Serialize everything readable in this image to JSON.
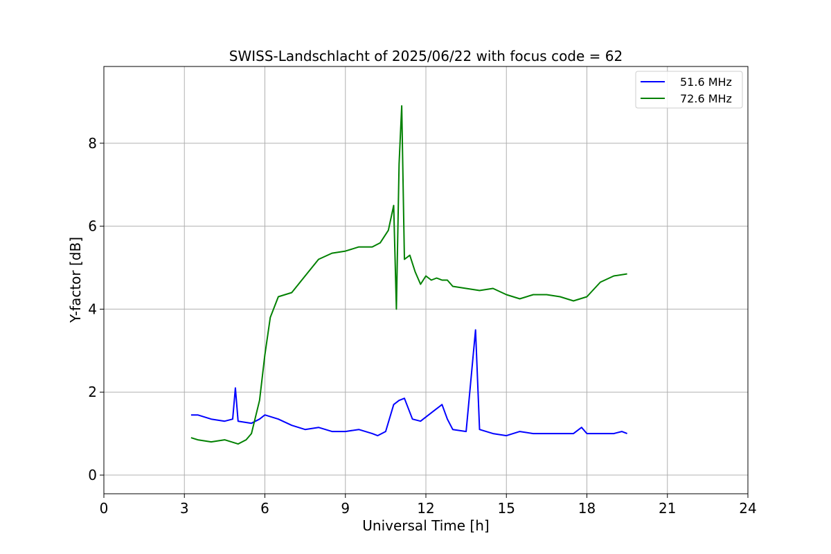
{
  "chart_data": {
    "type": "line",
    "title": "SWISS-Landschlacht of 2025/06/22 with focus code = 62",
    "xlabel": "Universal Time [h]",
    "ylabel": "Y-factor [dB]",
    "xlim": [
      0,
      24
    ],
    "ylim": [
      -0.45,
      9.85
    ],
    "xticks": [
      0,
      3,
      6,
      9,
      12,
      15,
      18,
      21,
      24
    ],
    "xtick_labels": [
      "0",
      "3",
      "6",
      "9",
      "12",
      "15",
      "18",
      "21",
      "24"
    ],
    "yticks": [
      0,
      2,
      4,
      6,
      8
    ],
    "ytick_labels": [
      "0",
      "2",
      "4",
      "6",
      "8"
    ],
    "grid": true,
    "legend_position": "upper-right",
    "series": [
      {
        "name": "51.6 MHz",
        "color": "#0000ff",
        "x": [
          3.25,
          3.5,
          4.0,
          4.5,
          4.8,
          4.9,
          5.0,
          5.5,
          5.8,
          6.0,
          6.5,
          7.0,
          7.5,
          8.0,
          8.5,
          9.0,
          9.5,
          10.0,
          10.2,
          10.5,
          10.8,
          11.0,
          11.2,
          11.5,
          11.8,
          12.0,
          12.3,
          12.6,
          12.8,
          13.0,
          13.5,
          13.85,
          14.0,
          14.5,
          15.0,
          15.5,
          16.0,
          16.5,
          17.0,
          17.5,
          17.8,
          18.0,
          18.5,
          19.0,
          19.3,
          19.5
        ],
        "y": [
          1.45,
          1.45,
          1.35,
          1.3,
          1.35,
          2.1,
          1.3,
          1.25,
          1.35,
          1.45,
          1.35,
          1.2,
          1.1,
          1.15,
          1.05,
          1.05,
          1.1,
          1.0,
          0.95,
          1.05,
          1.7,
          1.8,
          1.85,
          1.35,
          1.3,
          1.4,
          1.55,
          1.7,
          1.35,
          1.1,
          1.05,
          3.5,
          1.1,
          1.0,
          0.95,
          1.05,
          1.0,
          1.0,
          1.0,
          1.0,
          1.15,
          1.0,
          1.0,
          1.0,
          1.05,
          1.0
        ]
      },
      {
        "name": "72.6 MHz",
        "color": "#008000",
        "x": [
          3.25,
          3.5,
          4.0,
          4.5,
          5.0,
          5.3,
          5.5,
          5.8,
          6.0,
          6.2,
          6.5,
          7.0,
          7.5,
          8.0,
          8.5,
          9.0,
          9.5,
          10.0,
          10.3,
          10.6,
          10.8,
          10.9,
          11.0,
          11.1,
          11.2,
          11.4,
          11.6,
          11.8,
          12.0,
          12.2,
          12.4,
          12.6,
          12.8,
          13.0,
          13.5,
          14.0,
          14.5,
          15.0,
          15.5,
          16.0,
          16.5,
          17.0,
          17.5,
          18.0,
          18.5,
          19.0,
          19.5
        ],
        "y": [
          0.9,
          0.85,
          0.8,
          0.85,
          0.75,
          0.85,
          1.0,
          1.8,
          2.9,
          3.8,
          4.3,
          4.4,
          4.8,
          5.2,
          5.35,
          5.4,
          5.5,
          5.5,
          5.6,
          5.9,
          6.5,
          4.0,
          7.5,
          8.9,
          5.2,
          5.3,
          4.9,
          4.6,
          4.8,
          4.7,
          4.75,
          4.7,
          4.7,
          4.55,
          4.5,
          4.45,
          4.5,
          4.35,
          4.25,
          4.35,
          4.35,
          4.3,
          4.2,
          4.3,
          4.65,
          4.8,
          4.85
        ]
      }
    ]
  }
}
